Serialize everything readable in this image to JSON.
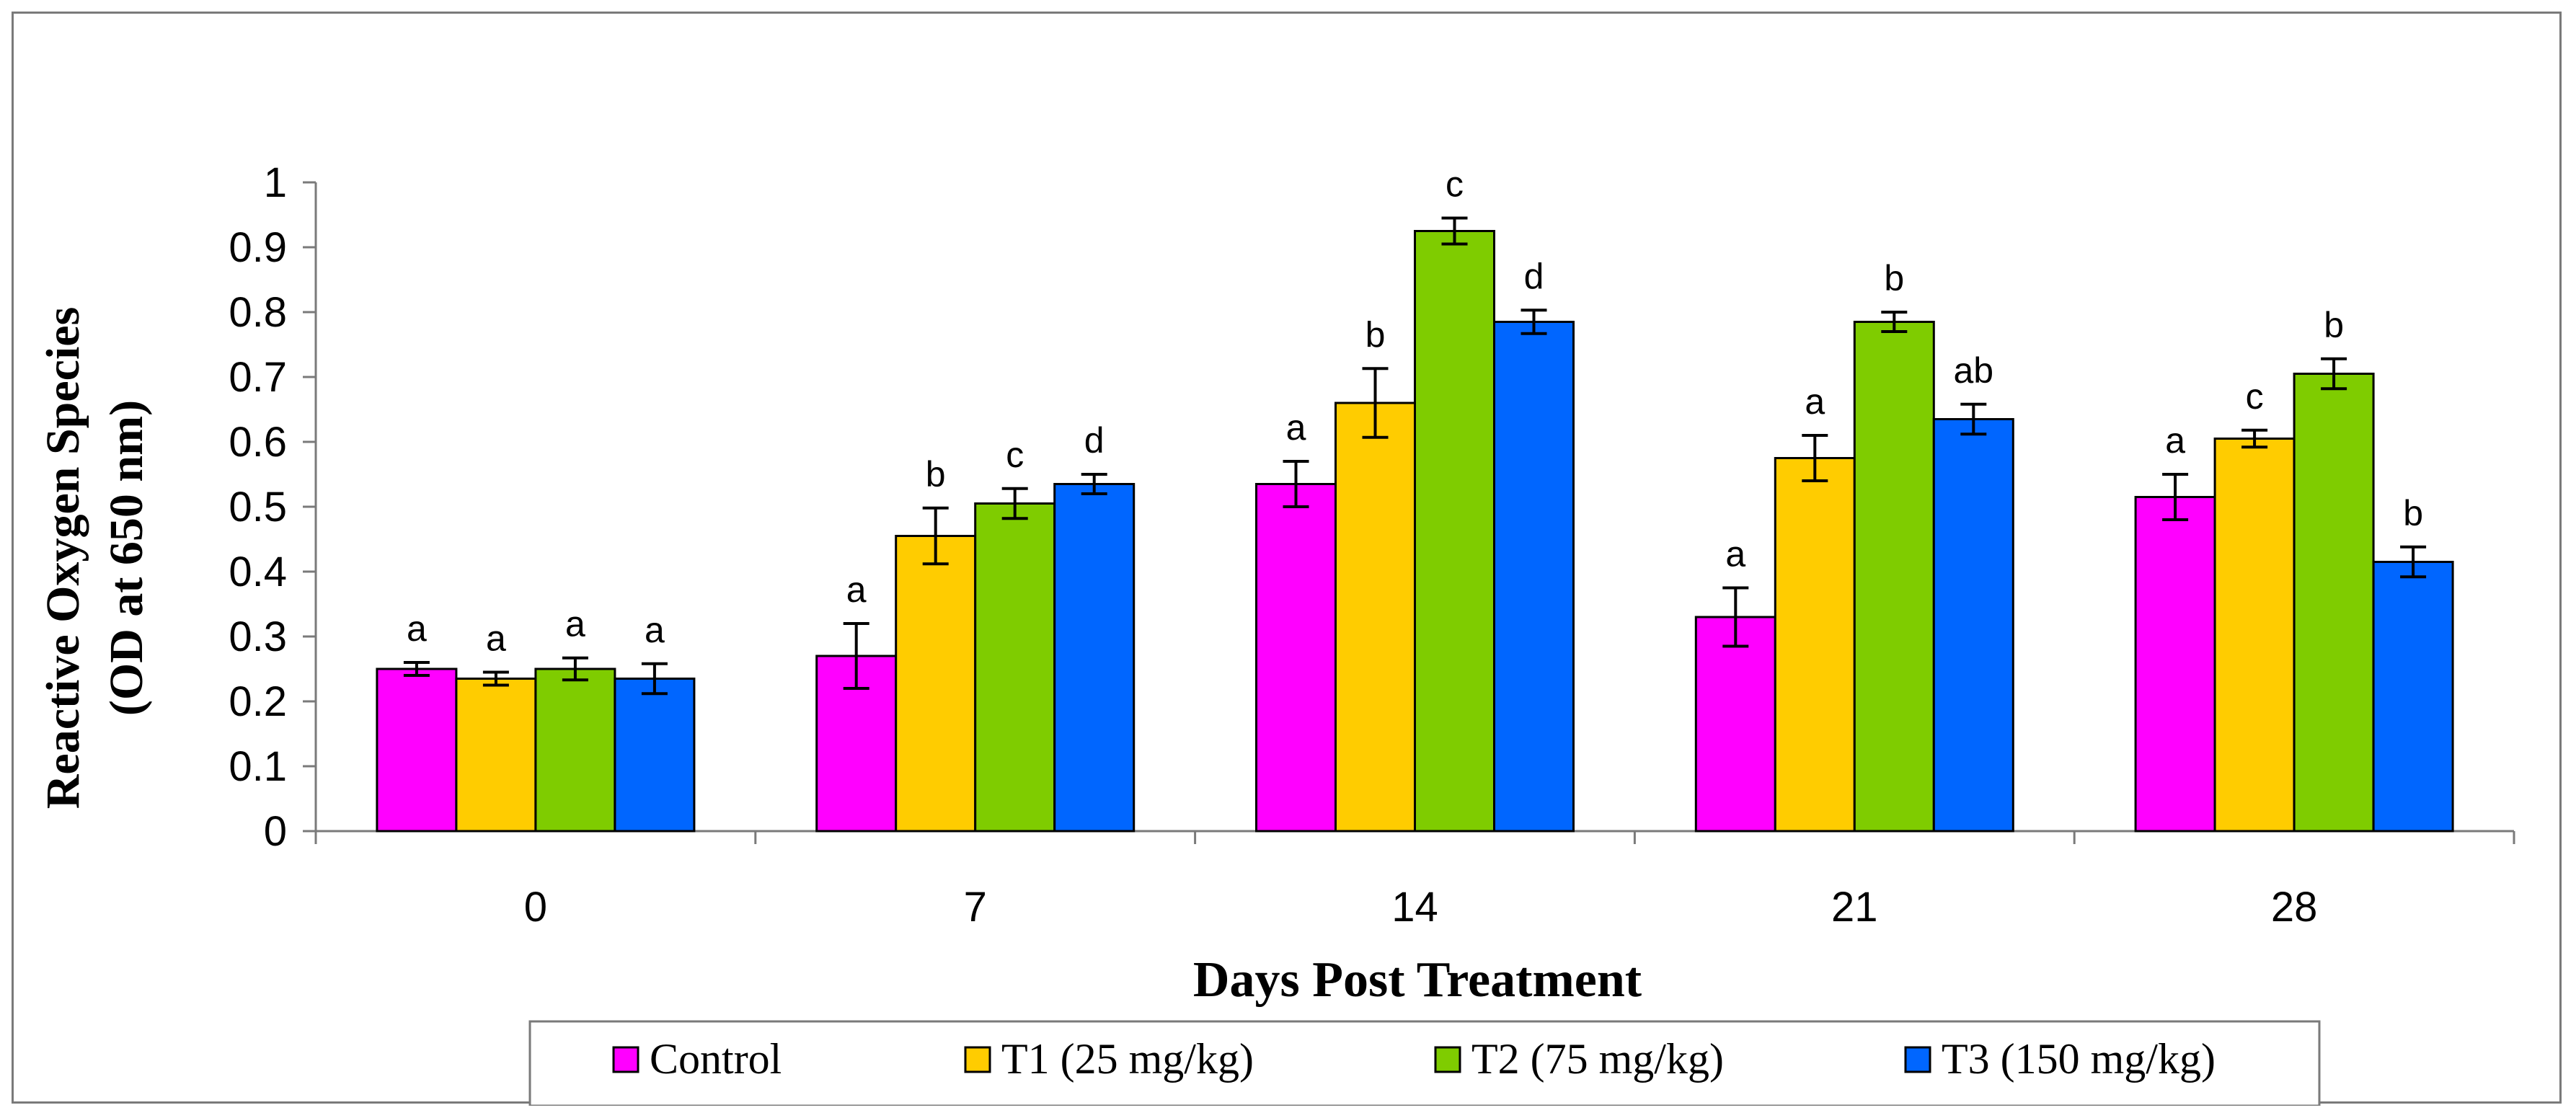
{
  "chart_data": {
    "type": "bar",
    "title": "",
    "xlabel": "Days Post Treatment",
    "ylabel_line1": "Reactive Oxygen Species",
    "ylabel_line2": "(OD at 650 nm)",
    "ylim": [
      0,
      1
    ],
    "yticks": [
      "0",
      "0.1",
      "0.2",
      "0.3",
      "0.4",
      "0.5",
      "0.6",
      "0.7",
      "0.8",
      "0.9",
      "1"
    ],
    "categories": [
      "0",
      "7",
      "14",
      "21",
      "28"
    ],
    "legend_position": "bottom",
    "grid": false,
    "series": [
      {
        "name": "Control",
        "color": "#FF00FF",
        "values": [
          0.25,
          0.27,
          0.535,
          0.33,
          0.515
        ],
        "errors": [
          0.01,
          0.05,
          0.035,
          0.045,
          0.035
        ],
        "significance": [
          "a",
          "a",
          "a",
          "a",
          "a"
        ]
      },
      {
        "name": "T1 (25 mg/kg)",
        "color": "#FFCC00",
        "values": [
          0.235,
          0.455,
          0.66,
          0.575,
          0.605
        ],
        "errors": [
          0.01,
          0.043,
          0.053,
          0.035,
          0.013
        ],
        "significance": [
          "a",
          "b",
          "b",
          "a",
          "c"
        ]
      },
      {
        "name": "T2 (75 mg/kg)",
        "color": "#7FCC00",
        "values": [
          0.25,
          0.505,
          0.925,
          0.785,
          0.705
        ],
        "errors": [
          0.017,
          0.023,
          0.02,
          0.015,
          0.023
        ],
        "significance": [
          "a",
          "c",
          "c",
          "b",
          "b"
        ]
      },
      {
        "name": "T3 (150 mg/kg)",
        "color": "#0066FF",
        "values": [
          0.235,
          0.535,
          0.785,
          0.635,
          0.415
        ],
        "errors": [
          0.023,
          0.015,
          0.018,
          0.023,
          0.023
        ],
        "significance": [
          "a",
          "d",
          "d",
          "ab",
          "b"
        ]
      }
    ]
  }
}
